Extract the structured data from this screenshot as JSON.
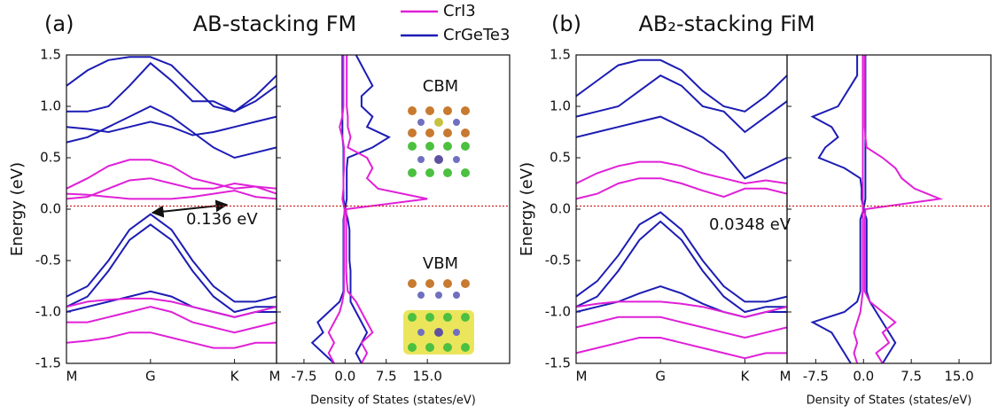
{
  "chart_data": {
    "type": "band-dos",
    "series": [
      {
        "name": "CrI3",
        "color": "#e020d8"
      },
      {
        "name": "CrGeTe3",
        "color": "#1c1cb4"
      }
    ],
    "panels": [
      {
        "label": "(a)",
        "title": "AB-stacking FM",
        "gap_label": "0.136 eV",
        "inset_labels": [
          "CBM",
          "VBM"
        ],
        "fermi_level": 0.03,
        "band": {
          "ylabel": "Energy (eV)",
          "ylim": [
            -1.5,
            1.5
          ],
          "yticks": [
            -1.5,
            {
              "value": -1.0,
              "label": "-1.0"
            },
            -0.5,
            {
              "value": 0.0,
              "label": "0.0"
            },
            0.5,
            {
              "value": 1.0,
              "label": "1.0"
            },
            1.5
          ],
          "xlim": [
            0,
            2.5
          ],
          "xticks": [
            {
              "value": 0,
              "label": "M"
            },
            {
              "value": 1,
              "label": "G"
            },
            {
              "value": 2,
              "label": "K"
            },
            {
              "value": 2.5,
              "label": "M"
            }
          ],
          "x": [
            0,
            0.25,
            0.5,
            0.75,
            1,
            1.25,
            1.5,
            1.75,
            2,
            2.25,
            2.5
          ],
          "series": [
            {
              "bands": [
                [
                  0.2,
                  0.3,
                  0.42,
                  0.48,
                  0.48,
                  0.42,
                  0.3,
                  0.25,
                  0.2,
                  0.22,
                  0.2
                ],
                [
                  0.1,
                  0.12,
                  0.2,
                  0.28,
                  0.3,
                  0.25,
                  0.2,
                  0.2,
                  0.25,
                  0.22,
                  0.15
                ],
                [
                  0.15,
                  0.14,
                  0.12,
                  0.1,
                  0.1,
                  0.1,
                  0.12,
                  0.15,
                  0.18,
                  0.12,
                  0.1
                ],
                [
                  -0.95,
                  -0.9,
                  -0.88,
                  -0.87,
                  -0.87,
                  -0.9,
                  -0.95,
                  -1.0,
                  -1.05,
                  -1.0,
                  -0.95
                ],
                [
                  -1.1,
                  -1.1,
                  -1.05,
                  -1.0,
                  -0.95,
                  -1.0,
                  -1.1,
                  -1.15,
                  -1.2,
                  -1.15,
                  -1.1
                ],
                [
                  -1.3,
                  -1.28,
                  -1.25,
                  -1.2,
                  -1.2,
                  -1.25,
                  -1.3,
                  -1.35,
                  -1.35,
                  -1.3,
                  -1.3
                ]
              ]
            },
            {
              "bands": [
                [
                  -0.85,
                  -0.75,
                  -0.5,
                  -0.2,
                  -0.05,
                  -0.2,
                  -0.5,
                  -0.75,
                  -0.9,
                  -0.9,
                  -0.85
                ],
                [
                  -0.95,
                  -0.85,
                  -0.6,
                  -0.3,
                  -0.15,
                  -0.3,
                  -0.6,
                  -0.85,
                  -1.0,
                  -0.95,
                  -0.95
                ],
                [
                  -1.0,
                  -0.95,
                  -0.9,
                  -0.85,
                  -0.8,
                  -0.85,
                  -0.95,
                  -1.0,
                  -1.05,
                  -1.0,
                  -1.0
                ],
                [
                  1.2,
                  1.35,
                  1.45,
                  1.48,
                  1.48,
                  1.4,
                  1.2,
                  1.0,
                  0.95,
                  1.05,
                  1.2
                ],
                [
                  0.95,
                  0.95,
                  1.0,
                  1.2,
                  1.42,
                  1.25,
                  1.05,
                  1.05,
                  0.95,
                  1.1,
                  1.3
                ],
                [
                  0.8,
                  0.78,
                  0.75,
                  0.8,
                  0.85,
                  0.8,
                  0.72,
                  0.75,
                  0.8,
                  0.85,
                  0.9
                ],
                [
                  0.65,
                  0.7,
                  0.8,
                  0.9,
                  1.0,
                  0.9,
                  0.75,
                  0.6,
                  0.5,
                  0.55,
                  0.6
                ]
              ]
            }
          ]
        },
        "dos": {
          "xlabel": "Density of States (states/eV)",
          "xlim": [
            -12.5,
            30
          ],
          "xticks": [
            -7.5,
            {
              "value": 0.0,
              "label": "0.0"
            },
            7.5,
            {
              "value": 15.0,
              "label": "15.0"
            }
          ],
          "energy": [
            -1.5,
            -1.4,
            -1.3,
            -1.2,
            -1.1,
            -1.0,
            -0.9,
            -0.8,
            -0.7,
            -0.6,
            -0.5,
            -0.4,
            -0.3,
            -0.2,
            -0.1,
            0.0,
            0.1,
            0.2,
            0.3,
            0.4,
            0.5,
            0.6,
            0.7,
            0.8,
            0.9,
            1.0,
            1.1,
            1.2,
            1.3,
            1.4,
            1.5
          ],
          "series": [
            {
              "up": [
                3,
                4,
                3,
                5,
                4,
                3,
                2,
                0.5,
                0.3,
                0.2,
                0.2,
                0.2,
                0.2,
                0.2,
                0.2,
                0.2,
                15,
                6,
                4,
                5,
                4,
                0.5,
                1,
                0.5,
                0.5,
                0.3,
                0.3,
                0.3,
                0.3,
                0.3,
                0.3
              ],
              "down": [
                -2,
                -3,
                -2,
                -3,
                -2,
                -1,
                -0.5,
                -0.2,
                -0.2,
                -0.2,
                -0.2,
                -0.2,
                -0.2,
                -0.2,
                -0.2,
                -0.1,
                -0.5,
                -0.3,
                -0.3,
                -0.2,
                -0.2,
                -0.2,
                -0.5,
                -1,
                -0.5,
                -0.3,
                -0.3,
                -0.3,
                -0.3,
                -0.3,
                -0.3
              ]
            },
            {
              "up": [
                3,
                2,
                3,
                4,
                3,
                2,
                1,
                1,
                1,
                1,
                0.8,
                0.8,
                0.8,
                0.8,
                0.5,
                0,
                0.3,
                0.3,
                0.3,
                0.3,
                0.5,
                5,
                8,
                4,
                5,
                3,
                3,
                5,
                4,
                3,
                2
              ],
              "down": [
                -2,
                -4,
                -6,
                -4,
                -5,
                -3,
                -1,
                -0.3,
                -0.3,
                -0.3,
                -0.3,
                -0.3,
                -0.3,
                -0.3,
                -0.3,
                0,
                -0.3,
                -0.3,
                -0.3,
                -0.3,
                -0.3,
                -0.3,
                -0.5,
                -0.5,
                -0.5,
                -0.5,
                -0.5,
                -0.5,
                -0.5,
                -0.5,
                -0.5
              ]
            }
          ]
        }
      },
      {
        "label": "(b)",
        "title": "AB₂-stacking FiM",
        "gap_label": "0.0348 eV",
        "fermi_level": 0.03,
        "band": {
          "ylabel": "Energy (eV)",
          "ylim": [
            -1.5,
            1.5
          ],
          "yticks": [
            -1.5,
            {
              "value": -1.0,
              "label": "-1.0"
            },
            -0.5,
            {
              "value": 0.0,
              "label": "0.0"
            },
            0.5,
            {
              "value": 1.0,
              "label": "1.0"
            },
            1.5
          ],
          "xlim": [
            0,
            2.5
          ],
          "xticks": [
            {
              "value": 0,
              "label": "M"
            },
            {
              "value": 1,
              "label": "G"
            },
            {
              "value": 2,
              "label": "K"
            },
            {
              "value": 2.5,
              "label": "M"
            }
          ],
          "x": [
            0,
            0.25,
            0.5,
            0.75,
            1,
            1.25,
            1.5,
            1.75,
            2,
            2.25,
            2.5
          ],
          "series": [
            {
              "bands": [
                [
                  0.25,
                  0.35,
                  0.42,
                  0.46,
                  0.46,
                  0.42,
                  0.35,
                  0.3,
                  0.25,
                  0.28,
                  0.25
                ],
                [
                  0.1,
                  0.15,
                  0.25,
                  0.3,
                  0.3,
                  0.25,
                  0.18,
                  0.12,
                  0.2,
                  0.2,
                  0.15
                ],
                [
                  -0.95,
                  -0.92,
                  -0.9,
                  -0.9,
                  -0.9,
                  -0.92,
                  -0.95,
                  -1.0,
                  -1.05,
                  -1.0,
                  -0.95
                ],
                [
                  -1.15,
                  -1.1,
                  -1.05,
                  -1.05,
                  -1.05,
                  -1.1,
                  -1.15,
                  -1.2,
                  -1.25,
                  -1.2,
                  -1.15
                ],
                [
                  -1.4,
                  -1.35,
                  -1.3,
                  -1.25,
                  -1.25,
                  -1.3,
                  -1.35,
                  -1.4,
                  -1.45,
                  -1.4,
                  -1.4
                ]
              ]
            },
            {
              "bands": [
                [
                  -0.85,
                  -0.7,
                  -0.45,
                  -0.15,
                  -0.03,
                  -0.2,
                  -0.5,
                  -0.75,
                  -0.9,
                  -0.9,
                  -0.85
                ],
                [
                  -0.95,
                  -0.85,
                  -0.6,
                  -0.3,
                  -0.12,
                  -0.3,
                  -0.6,
                  -0.85,
                  -1.0,
                  -0.95,
                  -0.95
                ],
                [
                  -1.0,
                  -0.95,
                  -0.9,
                  -0.82,
                  -0.75,
                  -0.82,
                  -0.92,
                  -1.0,
                  -1.05,
                  -1.0,
                  -1.0
                ],
                [
                  1.1,
                  1.25,
                  1.4,
                  1.45,
                  1.45,
                  1.35,
                  1.15,
                  1.0,
                  0.95,
                  1.1,
                  1.3
                ],
                [
                  0.9,
                  0.95,
                  1.0,
                  1.15,
                  1.3,
                  1.2,
                  1.0,
                  0.95,
                  0.75,
                  0.9,
                  1.05
                ],
                [
                  0.7,
                  0.75,
                  0.8,
                  0.85,
                  0.9,
                  0.8,
                  0.7,
                  0.55,
                  0.3,
                  0.4,
                  0.5
                ]
              ]
            }
          ]
        },
        "dos": {
          "xlabel": "Density of States (states/eV)",
          "xlim": [
            -12,
            20
          ],
          "xticks": [
            -7.5,
            {
              "value": 0.0,
              "label": "0.0"
            },
            7.5,
            {
              "value": 15.0,
              "label": "15.0"
            }
          ],
          "energy": [
            -1.5,
            -1.4,
            -1.3,
            -1.2,
            -1.1,
            -1.0,
            -0.9,
            -0.8,
            -0.7,
            -0.6,
            -0.5,
            -0.4,
            -0.3,
            -0.2,
            -0.1,
            0.0,
            0.1,
            0.2,
            0.3,
            0.4,
            0.5,
            0.6,
            0.7,
            0.8,
            0.9,
            1.0,
            1.1,
            1.2,
            1.3,
            1.4,
            1.5
          ],
          "series": [
            {
              "up": [
                3,
                2,
                4,
                3,
                5,
                3,
                1,
                0.2,
                0.2,
                0.2,
                0.2,
                0.2,
                0.2,
                0.2,
                0.2,
                0.3,
                12,
                8,
                6,
                5,
                3,
                0.5,
                0.3,
                0.2,
                0.2,
                0.2,
                0.2,
                0.2,
                0.2,
                0.2,
                0.2
              ],
              "down": [
                -1,
                -1.5,
                -1,
                -1.5,
                -1,
                -0.5,
                -0.3,
                -0.1,
                -0.1,
                -0.1,
                -0.1,
                -0.1,
                -0.1,
                -0.1,
                -0.1,
                -0.1,
                -0.1,
                -0.1,
                -0.1,
                -0.1,
                -0.1,
                -0.1,
                -0.1,
                -0.1,
                -0.1,
                -0.1,
                -0.1,
                -0.1,
                -0.1,
                -0.1,
                -0.1
              ]
            },
            {
              "up": [
                3,
                4,
                5,
                4,
                3,
                2,
                1,
                0.5,
                0.5,
                0.5,
                0.5,
                0.5,
                0.5,
                0.5,
                0.5,
                0,
                0.3,
                0.3,
                0.3,
                0.3,
                0.3,
                0.3,
                0.3,
                0.3,
                0.3,
                0.3,
                0.3,
                0.3,
                0.3,
                0.3,
                0.3
              ],
              "down": [
                -2,
                -3,
                -4,
                -5,
                -8,
                -3,
                -1,
                -0.5,
                -0.5,
                -0.5,
                -0.5,
                -0.5,
                -0.5,
                -0.5,
                -0.5,
                0,
                -0.3,
                -0.3,
                -0.5,
                -3,
                -7,
                -6,
                -4,
                -5,
                -8,
                -4,
                -3,
                -2,
                -1,
                -1,
                -1
              ]
            }
          ]
        }
      }
    ]
  }
}
